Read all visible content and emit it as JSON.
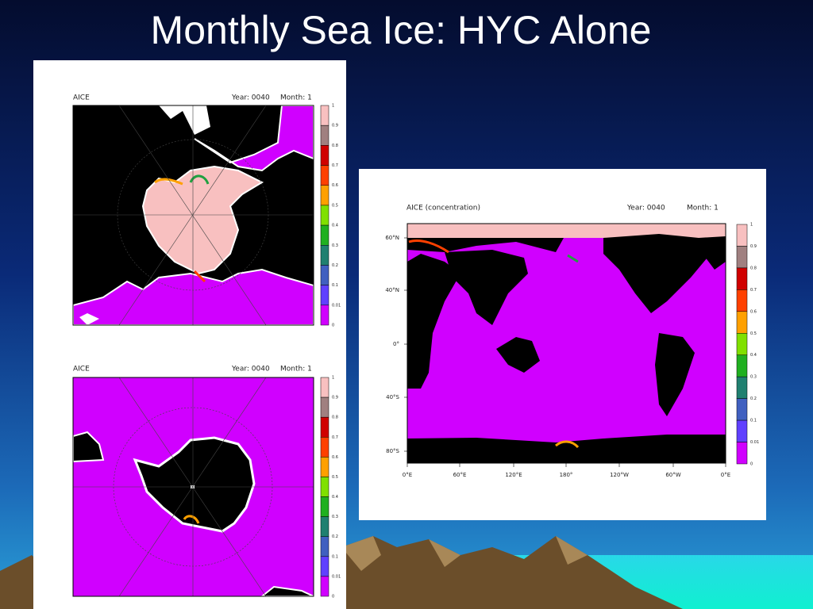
{
  "title": "Monthly Sea Ice: HYC Alone",
  "panels": [
    {
      "variable": "AICE",
      "year": "Year: 0040",
      "month": "Month: 1",
      "colorbar": [
        "1",
        "0.9",
        "0.8",
        "0.7",
        "0.6",
        "0.5",
        "0.4",
        "0.3",
        "0.2",
        "0.1",
        "0.01",
        "0"
      ]
    },
    {
      "variable": "AICE",
      "year": "Year: 0040",
      "month": "Month: 1",
      "colorbar": [
        "1",
        "0.9",
        "0.8",
        "0.7",
        "0.6",
        "0.5",
        "0.4",
        "0.3",
        "0.2",
        "0.1",
        "0.01",
        "0"
      ]
    },
    {
      "variable": "AICE (concentration)",
      "year": "Year: 0040",
      "month": "Month: 1",
      "colorbar": [
        "1",
        "0.9",
        "0.8",
        "0.7",
        "0.6",
        "0.5",
        "0.4",
        "0.3",
        "0.2",
        "0.1",
        "0.01",
        "0"
      ],
      "lat_labels": [
        "60°N",
        "40°N",
        "0°",
        "40°S",
        "80°S"
      ],
      "lon_labels": [
        "0°E",
        "60°E",
        "120°E",
        "180°",
        "120°W",
        "60°W",
        "0°E"
      ]
    }
  ]
}
